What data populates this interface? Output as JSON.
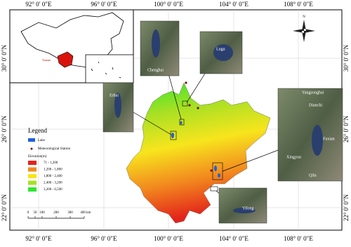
{
  "lon_labels": [
    "92° 0′ 0″E",
    "96° 0′ 0″E",
    "100° 0′ 0″E",
    "104° 0′ 0″E",
    "108° 0′ 0″E"
  ],
  "lat_labels": [
    "30° 0′ 0″N",
    "26° 0′ 0″N",
    "22° 0′ 0″N"
  ],
  "inset_label": "Yunnan",
  "north_arrow": "N",
  "legend": {
    "title": "Legend",
    "lake": "Lake",
    "station": "Meteorological Station",
    "elevation_title": "Elevation(m)",
    "classes": [
      {
        "label": "71 - 1,200",
        "color": "#e3241b"
      },
      {
        "label": "1,200 - 1,800",
        "color": "#f28a1e"
      },
      {
        "label": "1,800 - 2,400",
        "color": "#f7e51d"
      },
      {
        "label": "2,400 - 3,200",
        "color": "#a8e024"
      },
      {
        "label": "3,200 - 6,500",
        "color": "#2ee82e"
      }
    ]
  },
  "scale_bar": {
    "labels": [
      "0",
      "50",
      "100",
      "200",
      "300",
      "400 km"
    ]
  },
  "lakes": [
    "Chenghai",
    "Lugu",
    "Erhai",
    "Yangzonghai",
    "Dianchi",
    "Fuxian",
    "Xingyun",
    "Qilu",
    "Yilong"
  ]
}
